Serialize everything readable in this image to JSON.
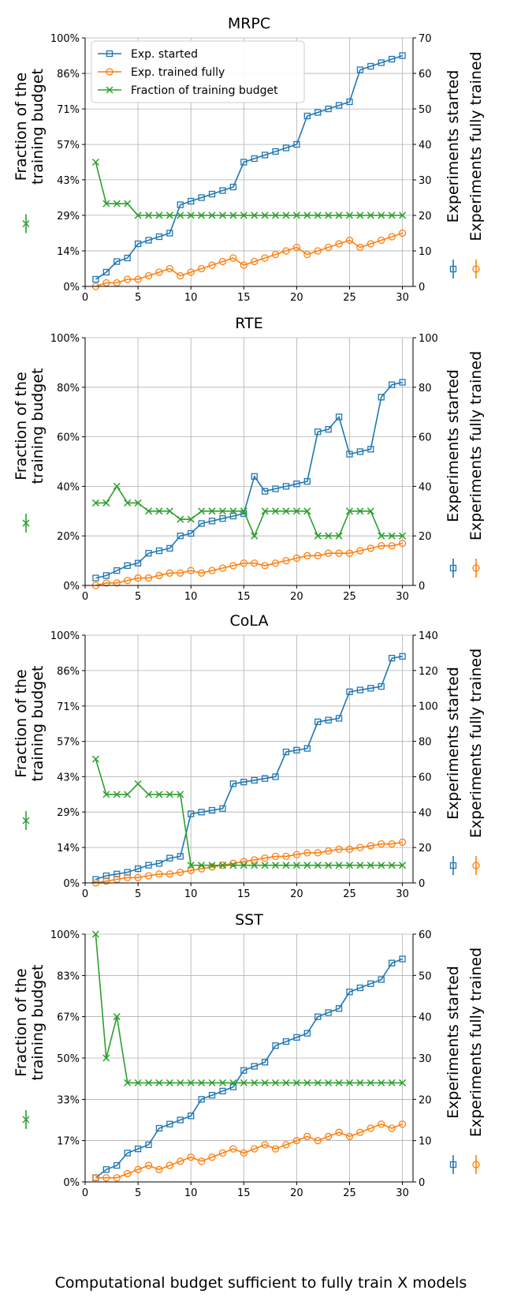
{
  "figure": {
    "xlabel": "Computational budget sufficient to fully train X models"
  },
  "legend": {
    "started": "Exp. started",
    "trained": "Exp. trained fully",
    "fraction": "Fraction of training budget"
  },
  "colors": {
    "started": "#1f77b4",
    "trained": "#ff7f0e",
    "fraction": "#2ca02c"
  },
  "chart_data": [
    {
      "type": "line",
      "title": "MRPC",
      "ylabel_left": [
        "Fraction of the",
        "training budget"
      ],
      "ylabel_right": [
        "Experiments started",
        "Experiments fully trained"
      ],
      "x": [
        1,
        2,
        3,
        4,
        5,
        6,
        7,
        8,
        9,
        10,
        11,
        12,
        13,
        14,
        15,
        16,
        17,
        18,
        19,
        20,
        21,
        22,
        23,
        24,
        25,
        26,
        27,
        28,
        29,
        30
      ],
      "xlim": [
        0,
        31
      ],
      "xticks": [
        0,
        5,
        10,
        15,
        20,
        25,
        30
      ],
      "left_ylim": [
        0,
        1
      ],
      "left_ticks": [
        0,
        0.143,
        0.286,
        0.429,
        0.571,
        0.714,
        0.857,
        1
      ],
      "left_tick_labels": [
        "0%",
        "14%",
        "29%",
        "43%",
        "57%",
        "71%",
        "86%",
        "100%"
      ],
      "right_ylim": [
        0,
        70
      ],
      "right_ticks": [
        0,
        10,
        20,
        30,
        40,
        50,
        60,
        70
      ],
      "right_tick_labels": [
        "0",
        "10",
        "20",
        "30",
        "40",
        "50",
        "60",
        "70"
      ],
      "legend": "upper-left",
      "grid": true,
      "series": [
        {
          "key": "started",
          "axis": "right",
          "marker": "square",
          "values": [
            2,
            4,
            7,
            8,
            12,
            13,
            14,
            15,
            23,
            24,
            25,
            26,
            27,
            28,
            35,
            36,
            37,
            38,
            39,
            40,
            48,
            49,
            50,
            51,
            52,
            61,
            62,
            63,
            64,
            65
          ]
        },
        {
          "key": "trained",
          "axis": "right",
          "marker": "circle",
          "values": [
            0,
            1,
            1,
            2,
            2,
            3,
            4,
            5,
            3,
            4,
            5,
            6,
            7,
            8,
            6,
            7,
            8,
            9,
            10,
            11,
            9,
            10,
            11,
            12,
            13,
            11,
            12,
            13,
            14,
            15
          ]
        },
        {
          "key": "fraction",
          "axis": "left",
          "marker": "x",
          "values": [
            0.5,
            0.333,
            0.333,
            0.333,
            0.286,
            0.286,
            0.286,
            0.286,
            0.286,
            0.286,
            0.286,
            0.286,
            0.286,
            0.286,
            0.286,
            0.286,
            0.286,
            0.286,
            0.286,
            0.286,
            0.286,
            0.286,
            0.286,
            0.286,
            0.286,
            0.286,
            0.286,
            0.286,
            0.286,
            0.286
          ]
        }
      ]
    },
    {
      "type": "line",
      "title": "RTE",
      "ylabel_left": [
        "Fraction of the",
        "training budget"
      ],
      "ylabel_right": [
        "Experiments started",
        "Experiments fully trained"
      ],
      "x": [
        1,
        2,
        3,
        4,
        5,
        6,
        7,
        8,
        9,
        10,
        11,
        12,
        13,
        14,
        15,
        16,
        17,
        18,
        19,
        20,
        21,
        22,
        23,
        24,
        25,
        26,
        27,
        28,
        29,
        30
      ],
      "xlim": [
        0,
        31
      ],
      "xticks": [
        0,
        5,
        10,
        15,
        20,
        25,
        30
      ],
      "left_ylim": [
        0,
        1
      ],
      "left_ticks": [
        0,
        0.2,
        0.4,
        0.6,
        0.8,
        1
      ],
      "left_tick_labels": [
        "0%",
        "20%",
        "40%",
        "60%",
        "80%",
        "100%"
      ],
      "right_ylim": [
        0,
        100
      ],
      "right_ticks": [
        0,
        20,
        40,
        60,
        80,
        100
      ],
      "right_tick_labels": [
        "0",
        "20",
        "40",
        "60",
        "80",
        "100"
      ],
      "grid": true,
      "series": [
        {
          "key": "started",
          "axis": "right",
          "marker": "square",
          "values": [
            3,
            4,
            6,
            8,
            9,
            13,
            14,
            15,
            20,
            21,
            25,
            26,
            27,
            28,
            29,
            44,
            38,
            39,
            40,
            41,
            42,
            62,
            63,
            68,
            53,
            54,
            55,
            76,
            81,
            82
          ]
        },
        {
          "key": "trained",
          "axis": "right",
          "marker": "circle",
          "values": [
            0,
            1,
            1,
            2,
            3,
            3,
            4,
            5,
            5,
            6,
            5,
            6,
            7,
            8,
            9,
            9,
            8,
            9,
            10,
            11,
            12,
            12,
            13,
            13,
            13,
            14,
            15,
            16,
            16,
            17
          ]
        },
        {
          "key": "fraction",
          "axis": "left",
          "marker": "x",
          "values": [
            0.333,
            0.333,
            0.4,
            0.333,
            0.333,
            0.3,
            0.3,
            0.3,
            0.267,
            0.267,
            0.3,
            0.3,
            0.3,
            0.3,
            0.3,
            0.2,
            0.3,
            0.3,
            0.3,
            0.3,
            0.3,
            0.2,
            0.2,
            0.2,
            0.3,
            0.3,
            0.3,
            0.2,
            0.2,
            0.2
          ]
        }
      ]
    },
    {
      "type": "line",
      "title": "CoLA",
      "ylabel_left": [
        "Fraction of the",
        "training budget"
      ],
      "ylabel_right": [
        "Experiments started",
        "Experiments fully trained"
      ],
      "x": [
        1,
        2,
        3,
        4,
        5,
        6,
        7,
        8,
        9,
        10,
        11,
        12,
        13,
        14,
        15,
        16,
        17,
        18,
        19,
        20,
        21,
        22,
        23,
        24,
        25,
        26,
        27,
        28,
        29,
        30
      ],
      "xlim": [
        0,
        31
      ],
      "xticks": [
        0,
        5,
        10,
        15,
        20,
        25,
        30
      ],
      "left_ylim": [
        0,
        1
      ],
      "left_ticks": [
        0,
        0.143,
        0.286,
        0.429,
        0.571,
        0.714,
        0.857,
        1
      ],
      "left_tick_labels": [
        "0%",
        "14%",
        "29%",
        "43%",
        "57%",
        "71%",
        "86%",
        "100%"
      ],
      "right_ylim": [
        0,
        140
      ],
      "right_ticks": [
        0,
        20,
        40,
        60,
        80,
        100,
        120,
        140
      ],
      "right_tick_labels": [
        "0",
        "20",
        "40",
        "60",
        "80",
        "100",
        "120",
        "140"
      ],
      "grid": true,
      "series": [
        {
          "key": "started",
          "axis": "right",
          "marker": "square",
          "values": [
            2,
            4,
            5,
            6,
            8,
            10,
            11,
            14,
            15,
            39,
            40,
            41,
            42,
            56,
            57,
            58,
            59,
            60,
            74,
            75,
            76,
            91,
            92,
            93,
            108,
            109,
            110,
            111,
            127,
            128
          ]
        },
        {
          "key": "trained",
          "axis": "right",
          "marker": "circle",
          "values": [
            0,
            1,
            2,
            3,
            3,
            4,
            5,
            5,
            6,
            7,
            8,
            9,
            10,
            11,
            12,
            13,
            14,
            15,
            15,
            16,
            17,
            17,
            18,
            19,
            19,
            20,
            21,
            22,
            22,
            23
          ]
        },
        {
          "key": "fraction",
          "axis": "left",
          "marker": "x",
          "values": [
            0.5,
            0.357,
            0.357,
            0.357,
            0.4,
            0.357,
            0.357,
            0.357,
            0.357,
            0.071,
            0.071,
            0.071,
            0.071,
            0.071,
            0.071,
            0.071,
            0.071,
            0.071,
            0.071,
            0.071,
            0.071,
            0.071,
            0.071,
            0.071,
            0.071,
            0.071,
            0.071,
            0.071,
            0.071,
            0.071
          ]
        }
      ]
    },
    {
      "type": "line",
      "title": "SST",
      "ylabel_left": [
        "Fraction of the",
        "training budget"
      ],
      "ylabel_right": [
        "Experiments started",
        "Experiments fully trained"
      ],
      "x": [
        1,
        2,
        3,
        4,
        5,
        6,
        7,
        8,
        9,
        10,
        11,
        12,
        13,
        14,
        15,
        16,
        17,
        18,
        19,
        20,
        21,
        22,
        23,
        24,
        25,
        26,
        27,
        28,
        29,
        30
      ],
      "xlim": [
        0,
        31
      ],
      "xticks": [
        0,
        5,
        10,
        15,
        20,
        25,
        30
      ],
      "left_ylim": [
        0,
        1
      ],
      "left_ticks": [
        0,
        0.167,
        0.333,
        0.5,
        0.667,
        0.833,
        1
      ],
      "left_tick_labels": [
        "0%",
        "17%",
        "33%",
        "50%",
        "67%",
        "83%",
        "100%"
      ],
      "right_ylim": [
        0,
        60
      ],
      "right_ticks": [
        0,
        10,
        20,
        30,
        40,
        50,
        60
      ],
      "right_tick_labels": [
        "0",
        "10",
        "20",
        "30",
        "40",
        "50",
        "60"
      ],
      "grid": true,
      "series": [
        {
          "key": "started",
          "axis": "right",
          "marker": "square",
          "values": [
            1,
            3,
            4,
            7,
            8,
            9,
            13,
            14,
            15,
            16,
            20,
            21,
            22,
            23,
            27,
            28,
            29,
            33,
            34,
            35,
            36,
            40,
            41,
            42,
            46,
            47,
            48,
            49,
            53,
            54
          ]
        },
        {
          "key": "trained",
          "axis": "right",
          "marker": "circle",
          "values": [
            1,
            1,
            1,
            2,
            3,
            4,
            3,
            4,
            5,
            6,
            5,
            6,
            7,
            8,
            7,
            8,
            9,
            8,
            9,
            10,
            11,
            10,
            11,
            12,
            11,
            12,
            13,
            14,
            13,
            14
          ]
        },
        {
          "key": "fraction",
          "axis": "left",
          "marker": "x",
          "values": [
            1.0,
            0.5,
            0.667,
            0.4,
            0.4,
            0.4,
            0.4,
            0.4,
            0.4,
            0.4,
            0.4,
            0.4,
            0.4,
            0.4,
            0.4,
            0.4,
            0.4,
            0.4,
            0.4,
            0.4,
            0.4,
            0.4,
            0.4,
            0.4,
            0.4,
            0.4,
            0.4,
            0.4,
            0.4,
            0.4
          ]
        }
      ]
    }
  ]
}
